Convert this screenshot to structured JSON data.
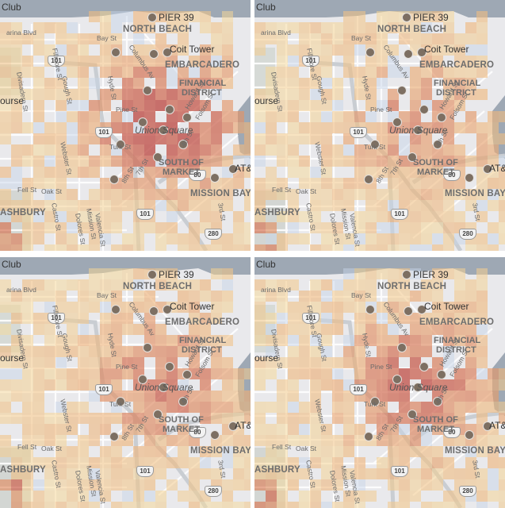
{
  "panels": [
    {
      "id": "map-panel-1",
      "intensity": 1.0
    },
    {
      "id": "map-panel-2",
      "intensity": 0.55
    },
    {
      "id": "map-panel-3",
      "intensity": 0.65
    },
    {
      "id": "map-panel-4",
      "intensity": 0.8
    }
  ],
  "labels": {
    "club": "Club",
    "marina": "arina Blvd",
    "pier39": "PIER 39",
    "north_beach": "NORTH BEACH",
    "coit": "Coit Tower",
    "embarcadero": "EMBARCADERO",
    "financial1": "FINANCIAL",
    "financial2": "DISTRICT",
    "union": "Union Square",
    "som1": "SOUTH OF",
    "som2": "MARKET",
    "att": "AT&",
    "mission_bay": "MISSION BAY",
    "ashbury": "ASHBURY",
    "course": "ourse",
    "divisadero": "Divisadero St",
    "gough": "Gough St",
    "fillmore": "Fillmore St",
    "hyde": "Hyde St",
    "pine": "Pine St",
    "turk": "Turk St",
    "webster": "Webster St",
    "fell": "Fell St",
    "oak": "Oak St",
    "castro": "Castro St",
    "dolores": "Dolores St",
    "valencia": "Valencia St",
    "mission": "Mission St",
    "howard": "Howard St",
    "folsom": "Folsom St",
    "columbus": "Columbus Av",
    "bay": "Bay St",
    "third": "3rd St",
    "fourth": "4th St",
    "seventh": "7th St",
    "eighth": "8th St",
    "hwy101": "101",
    "hwy280": "280",
    "hwy80": "80"
  },
  "colors": {
    "water": "#9ea8b4",
    "land": "#e9e9ec",
    "park": "#d6dad6",
    "road": "#ffffff",
    "highway": "#c9cdd2",
    "heat_low": "#fff4c8",
    "heat_mid": "#f2c48a",
    "heat_high": "#c9584a",
    "cool": "#c7d6e8"
  }
}
